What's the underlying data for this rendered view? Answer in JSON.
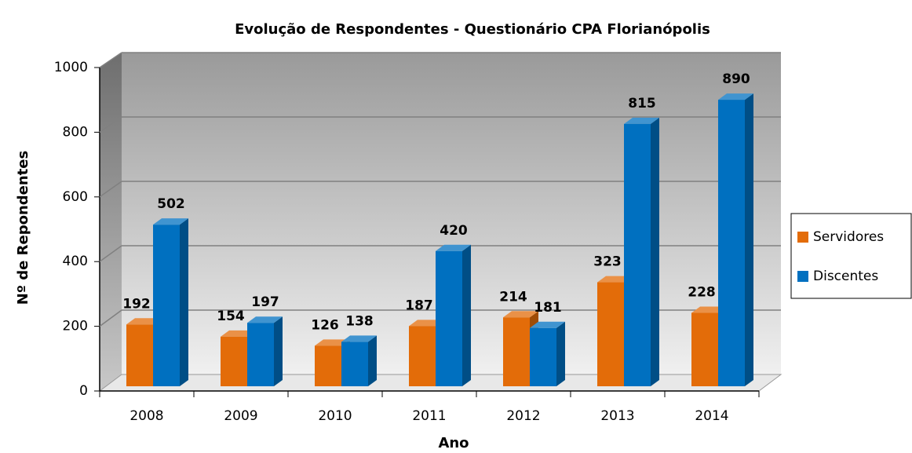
{
  "chart_data": {
    "type": "bar",
    "title": "Evolução de Respondentes - Questionário CPA Florianópolis",
    "x_label": "Ano",
    "y_label": "Nº de Repondentes",
    "categories": [
      "2008",
      "2009",
      "2010",
      "2011",
      "2012",
      "2013",
      "2014"
    ],
    "series": [
      {
        "name": "Servidores",
        "color": "#e36c09",
        "values": [
          192,
          154,
          126,
          187,
          214,
          323,
          228
        ]
      },
      {
        "name": "Discentes",
        "color": "#0070c0",
        "values": [
          502,
          197,
          138,
          420,
          181,
          815,
          890
        ]
      }
    ],
    "ylim": [
      0,
      1000
    ],
    "yticks": [
      0,
      200,
      400,
      600,
      800,
      1000
    ],
    "grid": true,
    "legend": "right"
  }
}
